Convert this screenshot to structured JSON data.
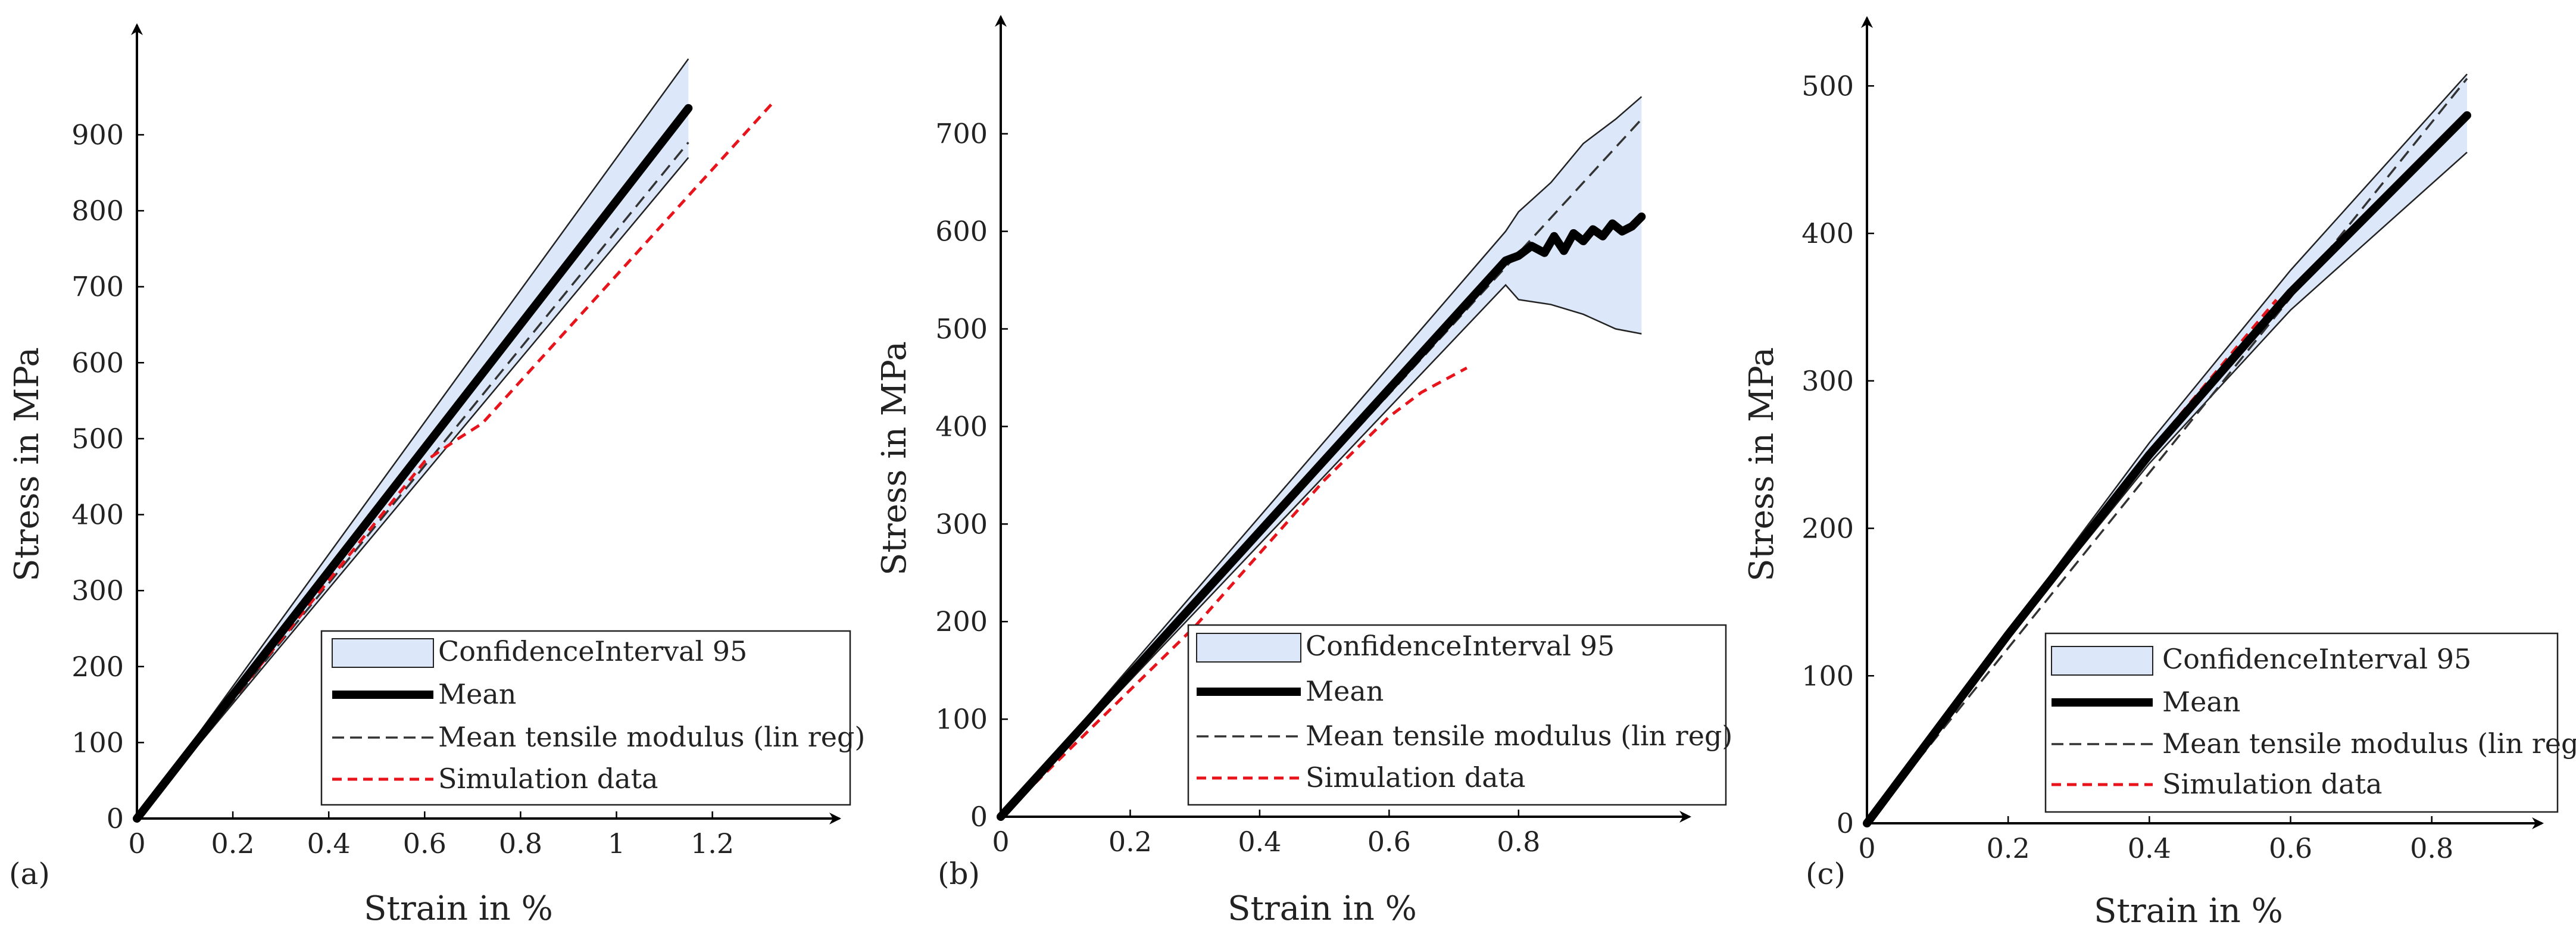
{
  "figure": {
    "panel_labels": [
      "(a)",
      "(b)",
      "(c)"
    ]
  },
  "colors": {
    "mean": "#000000",
    "band_fill": "#dce8fa",
    "band_edge": "#222222",
    "linreg": "#333333",
    "simulation": "#e8141c"
  },
  "chart_data": [
    {
      "type": "line",
      "panel": "(a)",
      "xlabel": "Strain in %",
      "ylabel": "Stress in MPa",
      "xlim": [
        0,
        1.45
      ],
      "ylim": [
        0,
        1050
      ],
      "xticks": [
        0,
        0.2,
        0.4,
        0.6,
        0.8,
        1,
        1.2
      ],
      "xtick_labels": [
        "0",
        "0.2",
        "0.4",
        "0.6",
        "0.8",
        "1",
        "1.2"
      ],
      "yticks": [
        0,
        100,
        200,
        300,
        400,
        500,
        600,
        700,
        800,
        900
      ],
      "legend": {
        "position": "bottom-right",
        "entries": [
          "ConfidenceInterval 95",
          "Mean",
          "Mean tensile modulus (lin reg)",
          "Simulation data"
        ]
      },
      "series": [
        {
          "name": "Mean",
          "style": "mean",
          "x": [
            0,
            1.15
          ],
          "y": [
            0,
            935
          ]
        },
        {
          "name": "Mean tensile modulus (lin reg)",
          "style": "linreg",
          "x": [
            0,
            1.15
          ],
          "y": [
            0,
            890
          ]
        },
        {
          "name": "Simulation data",
          "style": "simulation",
          "x": [
            0,
            0.6,
            0.67,
            0.72,
            1.33
          ],
          "y": [
            0,
            470,
            500,
            520,
            945
          ]
        }
      ],
      "confidence_interval": {
        "name": "ConfidenceInterval 95",
        "x": [
          0,
          1.15
        ],
        "upper": [
          0,
          1000
        ],
        "lower": [
          0,
          870
        ]
      }
    },
    {
      "type": "line",
      "panel": "(b)",
      "xlabel": "Strain in %",
      "ylabel": "Stress in MPa",
      "xlim": [
        0,
        1.02
      ],
      "ylim": [
        0,
        770
      ],
      "xticks": [
        0,
        0.2,
        0.4,
        0.6,
        0.8
      ],
      "xtick_labels": [
        "0",
        "0.2",
        "0.4",
        "0.6",
        "0.8"
      ],
      "yticks": [
        0,
        100,
        200,
        300,
        400,
        500,
        600,
        700
      ],
      "legend": {
        "position": "bottom-right",
        "entries": [
          "ConfidenceInterval 95",
          "Mean",
          "Mean tensile modulus (lin reg)",
          "Simulation data"
        ]
      },
      "series": [
        {
          "name": "Mean",
          "style": "mean",
          "x": [
            0,
            0.78,
            0.8,
            0.82,
            0.84,
            0.855,
            0.87,
            0.885,
            0.9,
            0.915,
            0.93,
            0.945,
            0.96,
            0.975,
            0.99
          ],
          "y": [
            0,
            570,
            575,
            585,
            578,
            595,
            580,
            598,
            590,
            602,
            595,
            608,
            600,
            605,
            615
          ]
        },
        {
          "name": "Mean tensile modulus (lin reg)",
          "style": "linreg",
          "x": [
            0,
            0.99
          ],
          "y": [
            0,
            715
          ]
        },
        {
          "name": "Simulation data",
          "style": "simulation",
          "x": [
            0,
            0.3,
            0.5,
            0.6,
            0.65,
            0.72
          ],
          "y": [
            0,
            195,
            345,
            410,
            435,
            460
          ]
        }
      ],
      "confidence_interval": {
        "name": "ConfidenceInterval 95",
        "x": [
          0,
          0.78,
          0.8,
          0.85,
          0.9,
          0.95,
          0.99
        ],
        "upper": [
          0,
          600,
          620,
          650,
          690,
          715,
          738
        ],
        "lower": [
          0,
          545,
          530,
          525,
          515,
          500,
          495
        ]
      }
    },
    {
      "type": "line",
      "panel": "(c)",
      "xlabel": "Strain in %",
      "ylabel": "Stress in MPa",
      "xlim": [
        0,
        0.92
      ],
      "ylim": [
        0,
        530
      ],
      "xticks": [
        0,
        0.2,
        0.4,
        0.6,
        0.8
      ],
      "xtick_labels": [
        "0",
        "0.2",
        "0.4",
        "0.6",
        "0.8"
      ],
      "yticks": [
        0,
        100,
        200,
        300,
        400,
        500
      ],
      "legend": {
        "position": "bottom-right",
        "entries": [
          "ConfidenceInterval 95",
          "Mean",
          "Mean tensile modulus (lin reg)",
          "Simulation data"
        ]
      },
      "series": [
        {
          "name": "Mean",
          "style": "mean",
          "x": [
            0,
            0.2,
            0.4,
            0.6,
            0.85
          ],
          "y": [
            0,
            128,
            250,
            360,
            480
          ]
        },
        {
          "name": "Mean tensile modulus (lin reg)",
          "style": "linreg",
          "x": [
            0,
            0.85
          ],
          "y": [
            0,
            505
          ]
        },
        {
          "name": "Simulation data",
          "style": "simulation",
          "x": [
            0,
            0.2,
            0.4,
            0.58
          ],
          "y": [
            0,
            130,
            252,
            355
          ]
        }
      ],
      "confidence_interval": {
        "name": "ConfidenceInterval 95",
        "x": [
          0,
          0.2,
          0.4,
          0.6,
          0.85
        ],
        "upper": [
          0,
          130,
          258,
          375,
          508
        ],
        "lower": [
          0,
          126,
          244,
          348,
          455
        ]
      }
    }
  ]
}
